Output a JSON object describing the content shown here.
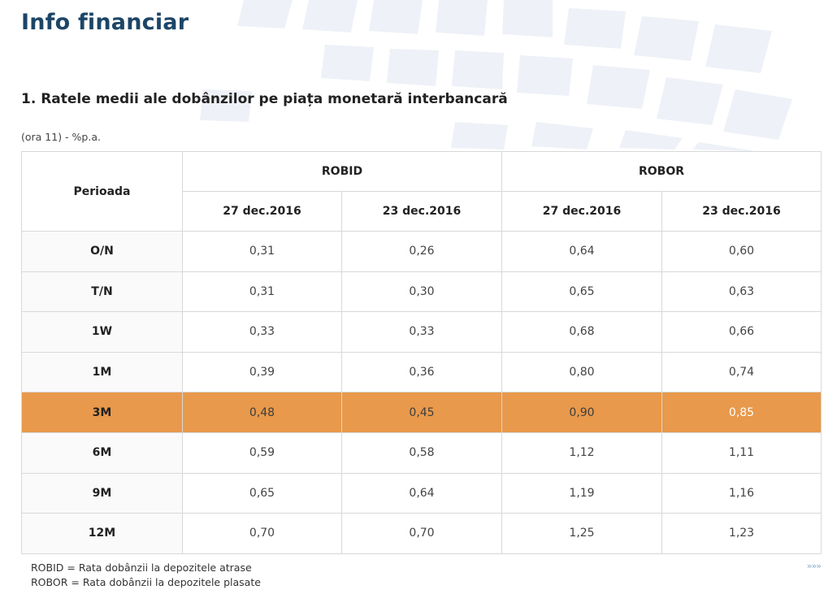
{
  "page": {
    "title": "Info financiar"
  },
  "section": {
    "title": "1. Ratele medii ale dobânzilor pe piața monetară interbancară",
    "unit_note": "(ora 11) - %p.a."
  },
  "table": {
    "period_header": "Perioada",
    "groups": [
      {
        "name": "ROBID",
        "dates": [
          "27 dec.2016",
          "23 dec.2016"
        ]
      },
      {
        "name": "ROBOR",
        "dates": [
          "27 dec.2016",
          "23 dec.2016"
        ]
      }
    ],
    "rows": [
      {
        "period": "O/N",
        "values": [
          "0,31",
          "0,26",
          "0,64",
          "0,60"
        ]
      },
      {
        "period": "T/N",
        "values": [
          "0,31",
          "0,30",
          "0,65",
          "0,63"
        ]
      },
      {
        "period": "1W",
        "values": [
          "0,33",
          "0,33",
          "0,68",
          "0,66"
        ]
      },
      {
        "period": "1M",
        "values": [
          "0,39",
          "0,36",
          "0,80",
          "0,74"
        ]
      },
      {
        "period": "3M",
        "values": [
          "0,48",
          "0,45",
          "0,90",
          "0,85"
        ],
        "highlighted": true
      },
      {
        "period": "6M",
        "values": [
          "0,59",
          "0,58",
          "1,12",
          "1,11"
        ]
      },
      {
        "period": "9M",
        "values": [
          "0,65",
          "0,64",
          "1,19",
          "1,16"
        ]
      },
      {
        "period": "12M",
        "values": [
          "0,70",
          "0,70",
          "1,25",
          "1,23"
        ]
      }
    ]
  },
  "legend": {
    "robid": "ROBID = Rata dobânzii la depozitele atrase",
    "robor": "ROBOR = Rata dobânzii la depozitele plasate"
  },
  "more_link": {
    "label": "»»»"
  },
  "colors": {
    "title": "#1d4567",
    "highlight_row": "#e8994b",
    "border": "#d8d8d8"
  }
}
